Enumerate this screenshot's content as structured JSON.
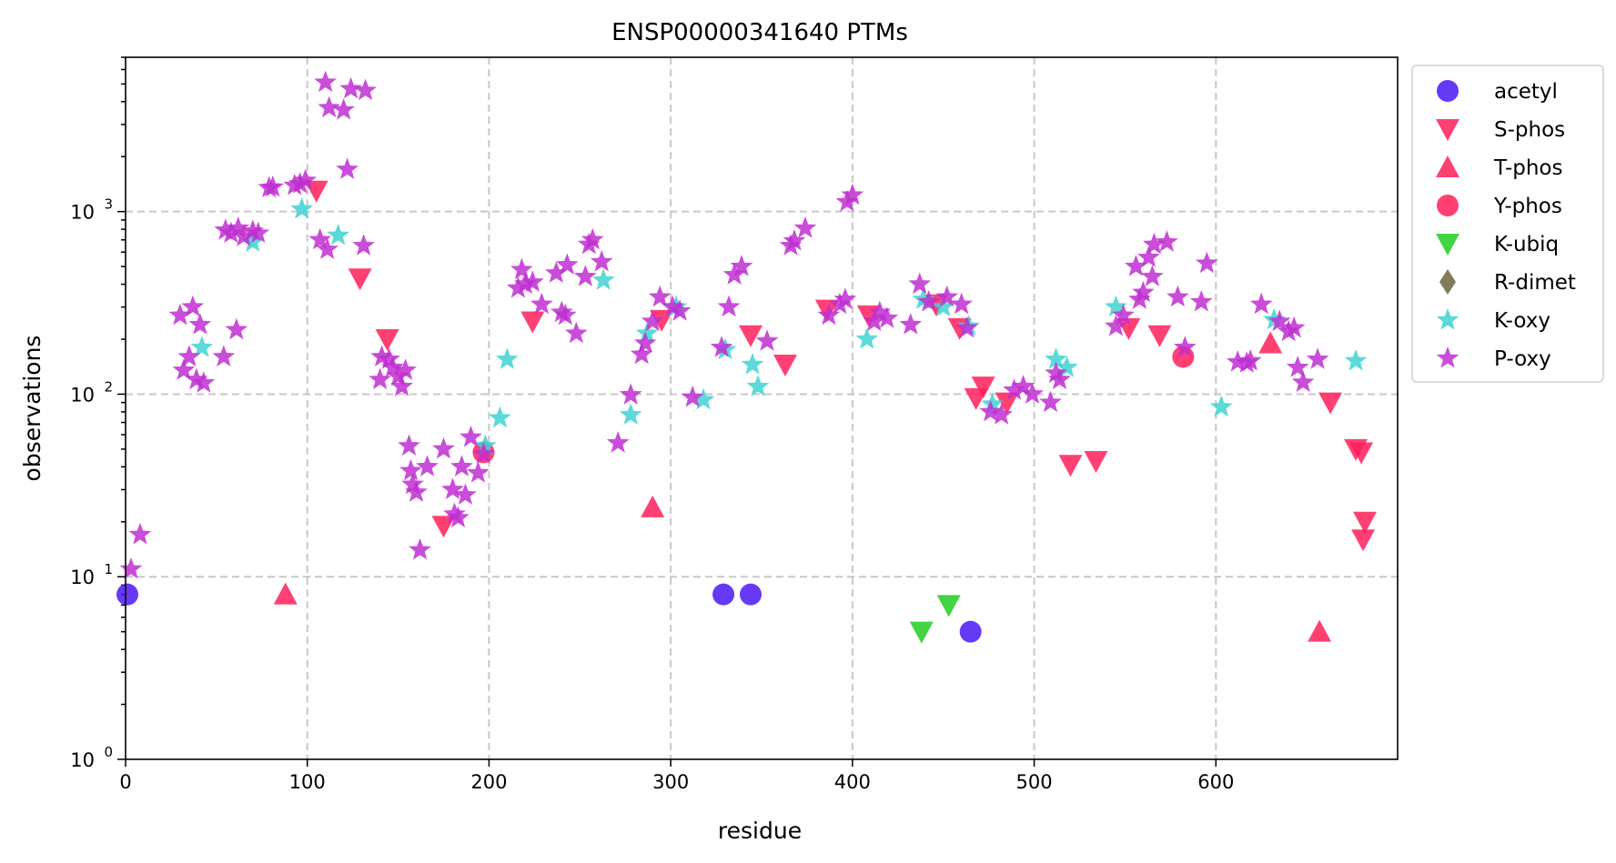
{
  "chart_data": {
    "type": "scatter",
    "title": "ENSP00000341640 PTMs",
    "xlabel": "residue",
    "ylabel": "observations",
    "xlim": [
      0,
      700
    ],
    "ylim": [
      1,
      7000
    ],
    "yscale": "log",
    "grid": true,
    "legend_position": "outside-right",
    "x_ticks": [
      {
        "value": 0,
        "label": "0"
      },
      {
        "value": 100,
        "label": "100"
      },
      {
        "value": 200,
        "label": "200"
      },
      {
        "value": 300,
        "label": "300"
      },
      {
        "value": 400,
        "label": "400"
      },
      {
        "value": 500,
        "label": "500"
      },
      {
        "value": 600,
        "label": "600"
      }
    ],
    "y_ticks": [
      {
        "value": 1,
        "base": "10",
        "exp": "0"
      },
      {
        "value": 10,
        "base": "10",
        "exp": "1"
      },
      {
        "value": 100,
        "base": "10",
        "exp": "2"
      },
      {
        "value": 1000,
        "base": "10",
        "exp": "3"
      }
    ],
    "series": [
      {
        "name": "acetyl",
        "marker": "circle",
        "color": "#4b16f5",
        "points": [
          [
            1,
            8
          ],
          [
            329,
            8
          ],
          [
            344,
            8
          ],
          [
            465,
            5
          ]
        ]
      },
      {
        "name": "S-phos",
        "marker": "triangle-down",
        "color": "#ff1f5b",
        "points": [
          [
            105,
            1300
          ],
          [
            129,
            430
          ],
          [
            144,
            200
          ],
          [
            175,
            19
          ],
          [
            224,
            250
          ],
          [
            295,
            255
          ],
          [
            344,
            210
          ],
          [
            363,
            145
          ],
          [
            386,
            290
          ],
          [
            409,
            270
          ],
          [
            446,
            310
          ],
          [
            459,
            230
          ],
          [
            468,
            95
          ],
          [
            472,
            110
          ],
          [
            485,
            90
          ],
          [
            520,
            41
          ],
          [
            534,
            43
          ],
          [
            552,
            230
          ],
          [
            569,
            210
          ],
          [
            663,
            90
          ],
          [
            677,
            50
          ],
          [
            680,
            48
          ],
          [
            682,
            20
          ],
          [
            681,
            16
          ]
        ]
      },
      {
        "name": "T-phos",
        "marker": "triangle-up",
        "color": "#ff1f5b",
        "points": [
          [
            88,
            8
          ],
          [
            290,
            24
          ],
          [
            657,
            5
          ],
          [
            630,
            190
          ]
        ]
      },
      {
        "name": "Y-phos",
        "marker": "circle",
        "color": "#ff1f5b",
        "points": [
          [
            197,
            48
          ],
          [
            582,
            160
          ]
        ]
      },
      {
        "name": "K-ubiq",
        "marker": "triangle-down",
        "color": "#22cc22",
        "points": [
          [
            438,
            5
          ],
          [
            453,
            7
          ]
        ]
      },
      {
        "name": "R-dimet",
        "marker": "diamond",
        "color": "#6b6540",
        "points": []
      },
      {
        "name": "K-oxy",
        "marker": "star",
        "color": "#3fd2d2",
        "points": [
          [
            42,
            180
          ],
          [
            70,
            680
          ],
          [
            97,
            1030
          ],
          [
            117,
            740
          ],
          [
            198,
            52
          ],
          [
            206,
            74
          ],
          [
            210,
            155
          ],
          [
            263,
            420
          ],
          [
            278,
            77
          ],
          [
            287,
            215
          ],
          [
            303,
            300
          ],
          [
            318,
            93
          ],
          [
            330,
            175
          ],
          [
            345,
            145
          ],
          [
            348,
            110
          ],
          [
            408,
            200
          ],
          [
            439,
            330
          ],
          [
            450,
            300
          ],
          [
            464,
            235
          ],
          [
            477,
            88
          ],
          [
            512,
            155
          ],
          [
            518,
            140
          ],
          [
            545,
            300
          ],
          [
            603,
            85
          ],
          [
            632,
            255
          ],
          [
            677,
            152
          ]
        ]
      },
      {
        "name": "P-oxy",
        "marker": "star",
        "color": "#bf2ed1",
        "points": [
          [
            3,
            11
          ],
          [
            8,
            17
          ],
          [
            30,
            270
          ],
          [
            32,
            135
          ],
          [
            35,
            160
          ],
          [
            37,
            300
          ],
          [
            39,
            120
          ],
          [
            41,
            240
          ],
          [
            43,
            115
          ],
          [
            54,
            160
          ],
          [
            55,
            790
          ],
          [
            58,
            760
          ],
          [
            61,
            225
          ],
          [
            62,
            810
          ],
          [
            65,
            730
          ],
          [
            70,
            780
          ],
          [
            73,
            760
          ],
          [
            79,
            1350
          ],
          [
            81,
            1360
          ],
          [
            93,
            1390
          ],
          [
            96,
            1420
          ],
          [
            99,
            1480
          ],
          [
            107,
            700
          ],
          [
            110,
            5100
          ],
          [
            111,
            620
          ],
          [
            112,
            3700
          ],
          [
            120,
            3600
          ],
          [
            122,
            1700
          ],
          [
            124,
            4700
          ],
          [
            131,
            650
          ],
          [
            132,
            4600
          ],
          [
            140,
            120
          ],
          [
            141,
            160
          ],
          [
            145,
            155
          ],
          [
            147,
            140
          ],
          [
            150,
            125
          ],
          [
            152,
            110
          ],
          [
            154,
            135
          ],
          [
            156,
            52
          ],
          [
            157,
            38
          ],
          [
            158,
            32
          ],
          [
            160,
            29
          ],
          [
            162,
            14
          ],
          [
            166,
            40
          ],
          [
            175,
            50
          ],
          [
            180,
            30
          ],
          [
            181,
            22
          ],
          [
            183,
            21
          ],
          [
            185,
            40
          ],
          [
            187,
            28
          ],
          [
            190,
            58
          ],
          [
            194,
            37
          ],
          [
            197,
            47
          ],
          [
            216,
            380
          ],
          [
            218,
            480
          ],
          [
            220,
            400
          ],
          [
            224,
            410
          ],
          [
            229,
            310
          ],
          [
            237,
            460
          ],
          [
            240,
            280
          ],
          [
            242,
            270
          ],
          [
            243,
            510
          ],
          [
            248,
            215
          ],
          [
            253,
            440
          ],
          [
            255,
            660
          ],
          [
            257,
            700
          ],
          [
            262,
            530
          ],
          [
            271,
            54
          ],
          [
            278,
            99
          ],
          [
            284,
            165
          ],
          [
            286,
            190
          ],
          [
            290,
            250
          ],
          [
            294,
            340
          ],
          [
            301,
            300
          ],
          [
            305,
            285
          ],
          [
            312,
            96
          ],
          [
            328,
            180
          ],
          [
            332,
            300
          ],
          [
            335,
            450
          ],
          [
            339,
            500
          ],
          [
            353,
            195
          ],
          [
            366,
            650
          ],
          [
            368,
            690
          ],
          [
            374,
            810
          ],
          [
            387,
            270
          ],
          [
            393,
            310
          ],
          [
            396,
            330
          ],
          [
            397,
            1130
          ],
          [
            400,
            1230
          ],
          [
            412,
            250
          ],
          [
            415,
            280
          ],
          [
            419,
            260
          ],
          [
            432,
            240
          ],
          [
            437,
            400
          ],
          [
            442,
            320
          ],
          [
            452,
            340
          ],
          [
            460,
            310
          ],
          [
            463,
            230
          ],
          [
            476,
            80
          ],
          [
            482,
            77
          ],
          [
            489,
            105
          ],
          [
            494,
            110
          ],
          [
            499,
            100
          ],
          [
            509,
            90
          ],
          [
            512,
            130
          ],
          [
            514,
            120
          ],
          [
            545,
            235
          ],
          [
            549,
            270
          ],
          [
            556,
            500
          ],
          [
            558,
            330
          ],
          [
            560,
            360
          ],
          [
            563,
            560
          ],
          [
            565,
            440
          ],
          [
            566,
            660
          ],
          [
            573,
            680
          ],
          [
            579,
            340
          ],
          [
            583,
            180
          ],
          [
            592,
            320
          ],
          [
            595,
            520
          ],
          [
            612,
            150
          ],
          [
            617,
            148
          ],
          [
            619,
            152
          ],
          [
            625,
            310
          ],
          [
            635,
            250
          ],
          [
            640,
            220
          ],
          [
            643,
            230
          ],
          [
            645,
            140
          ],
          [
            648,
            116
          ],
          [
            656,
            155
          ]
        ]
      }
    ]
  }
}
